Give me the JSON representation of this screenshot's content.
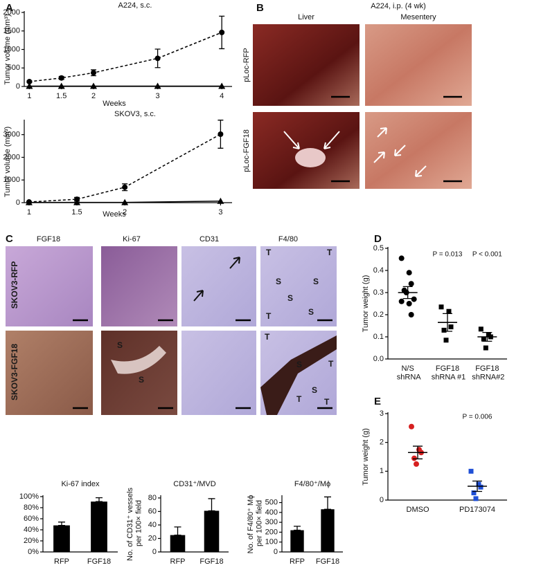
{
  "panel_letters": [
    "A",
    "B",
    "C",
    "D",
    "E"
  ],
  "panel_b": {
    "title": "A224, i.p. (4 wk)",
    "columns": [
      "Liver",
      "Mesentery"
    ],
    "rows": [
      "pLoc-RFP",
      "pLoc-FGF18"
    ]
  },
  "panel_c": {
    "columns": [
      "FGF18",
      "Ki-67",
      "CD31",
      "F4/80"
    ],
    "rows": [
      "SKOV3-RFP",
      "SKOV3-FGF18"
    ],
    "image_marks": [
      "T",
      "T",
      "S",
      "S",
      "S",
      "S",
      "T",
      "S",
      "S",
      "S",
      "T",
      "T",
      "T",
      "T",
      "S"
    ]
  },
  "chart_data": [
    {
      "type": "line",
      "title": "A224, s.c.",
      "y_label": "Tumor volume (mm³)",
      "x_label": "Weeks",
      "x": [
        1,
        1.5,
        2,
        3,
        4
      ],
      "xlim": [
        0.92,
        4.16
      ],
      "xticks": [
        1,
        1.5,
        2,
        3,
        4
      ],
      "ylim": [
        0,
        2000
      ],
      "yticks": [
        0,
        500,
        1000,
        1500,
        2000
      ],
      "series": [
        {
          "color": "#000000",
          "linestyle": "dashed",
          "marker": "circle",
          "values": [
            130,
            230,
            370,
            760,
            1460
          ],
          "errors": [
            20,
            40,
            80,
            250,
            440
          ]
        },
        {
          "color": "#000000",
          "linestyle": "solid",
          "marker": "triangle",
          "values": [
            10,
            10,
            10,
            10,
            10
          ]
        }
      ]
    },
    {
      "type": "line",
      "title": "SKOV3, s.c.",
      "y_label": "Tumor volume (mm³)",
      "x_label": "Weeks",
      "x": [
        1,
        1.5,
        2,
        3
      ],
      "xlim": [
        0.95,
        3.12
      ],
      "xticks": [
        1,
        1.5,
        2,
        3
      ],
      "ylim": [
        0,
        3600
      ],
      "yticks": [
        0,
        1000,
        2000,
        3000
      ],
      "series": [
        {
          "color": "#000000",
          "linestyle": "dashed",
          "marker": "circle",
          "values": [
            30,
            150,
            680,
            3020
          ],
          "errors": [
            20,
            80,
            150,
            620
          ]
        },
        {
          "color": "#000000",
          "linestyle": "solid",
          "marker": "triangle",
          "values": [
            10,
            10,
            10,
            70
          ]
        }
      ]
    },
    {
      "type": "bar",
      "title": "Ki-67 index",
      "categories": [
        "RFP",
        "FGF18"
      ],
      "values": [
        48,
        91
      ],
      "errors": [
        6,
        7
      ],
      "color": "#000000",
      "ylim": [
        0,
        100
      ],
      "yticks": [
        {
          "value": 0,
          "label": "0%"
        },
        {
          "value": 20,
          "label": "20%"
        },
        {
          "value": 40,
          "label": "40%"
        },
        {
          "value": 60,
          "label": "60%"
        },
        {
          "value": 80,
          "label": "80%"
        },
        {
          "value": 100,
          "label": "100%"
        }
      ]
    },
    {
      "type": "bar",
      "title": "CD31⁺/MVD",
      "y_label": "No. of CD31⁺ vessels per 100× field",
      "categories": [
        "RFP",
        "FGF18"
      ],
      "values": [
        25,
        61
      ],
      "errors": [
        12,
        18
      ],
      "color": "#000000",
      "ylim": [
        0,
        82
      ],
      "yticks": [
        0,
        20,
        40,
        60,
        80
      ]
    },
    {
      "type": "bar",
      "title": "F4/80⁺/Mϕ",
      "y_label": "No. of F4/80⁺ Mϕ per 100× field",
      "categories": [
        "RFP",
        "FGF18"
      ],
      "values": [
        220,
        432
      ],
      "errors": [
        40,
        125
      ],
      "color": "#000000",
      "ylim": [
        0,
        560
      ],
      "yticks": [
        0,
        100,
        200,
        300,
        400,
        500
      ]
    },
    {
      "type": "dot",
      "y_label": "Tumor weight (g)",
      "categories": [
        "N/S shRNA",
        "FGF18 shRNA #1",
        "FGF18 shRNA#2"
      ],
      "markers": [
        "circle",
        "square",
        "square"
      ],
      "colors": [
        "#000000",
        "#000000",
        "#000000"
      ],
      "points": [
        [
          0.455,
          0.39,
          0.34,
          0.31,
          0.3,
          0.27,
          0.26,
          0.25,
          0.2
        ],
        [
          0.235,
          0.215,
          0.145,
          0.13,
          0.085
        ],
        [
          0.135,
          0.11,
          0.1,
          0.09,
          0.05
        ]
      ],
      "means": [
        0.3,
        0.165,
        0.1
      ],
      "errors": [
        0.027,
        0.04,
        0.02
      ],
      "annotations": [
        "P = 0.013",
        "P < 0.001"
      ],
      "ylim": [
        0,
        0.5
      ],
      "yticks": [
        {
          "value": 0,
          "label": "0.0"
        },
        0.1,
        0.2,
        0.3,
        0.4,
        0.5
      ]
    },
    {
      "type": "dot",
      "y_label": "Tumor weight (g)",
      "categories": [
        "DMSO",
        "PD173074"
      ],
      "markers": [
        "circle",
        "square"
      ],
      "colors": [
        "#d62020",
        "#1f4fd6"
      ],
      "points": [
        [
          2.55,
          1.75,
          1.65,
          1.45,
          1.25
        ],
        [
          1.0,
          0.55,
          0.45,
          0.25,
          0.05
        ]
      ],
      "means": [
        1.65,
        0.48
      ],
      "errors": [
        0.22,
        0.18
      ],
      "annotations": [
        "P = 0.006"
      ],
      "ylim": [
        0,
        3
      ],
      "yticks": [
        0,
        1,
        2,
        3
      ]
    }
  ]
}
